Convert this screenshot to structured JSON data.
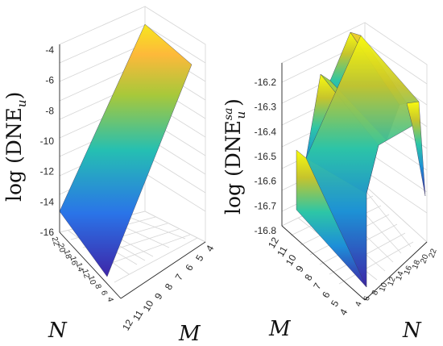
{
  "chart_data": [
    {
      "type": "surface",
      "zlabel_text": "log",
      "zlabel_main": "DNE",
      "zlabel_sub": "u",
      "xlabel": "N",
      "ylabel": "M",
      "z_ticks": [
        "-4",
        "-6",
        "-8",
        "-10",
        "-12",
        "-14",
        "-16"
      ],
      "m_ticks": [
        "4",
        "5",
        "6",
        "7",
        "8",
        "9",
        "10",
        "11",
        "12"
      ],
      "n_ticks": [
        "22",
        "20",
        "18",
        "16",
        "14",
        "12",
        "10",
        "8",
        "6",
        "4"
      ],
      "z_range": [
        -16,
        -4
      ],
      "surface_z_at_min_N": -15,
      "surface_z_at_max_N": -5,
      "colormap": [
        "#3e26a8",
        "#1d8fd8",
        "#2dc6a6",
        "#b8c52e",
        "#ffc838",
        "#f9fb0e"
      ]
    },
    {
      "type": "surface",
      "zlabel_text": "log",
      "zlabel_main": "DNE",
      "zlabel_sub": "u",
      "zlabel_sup": "sa",
      "xlabel": "N",
      "ylabel": "M",
      "z_ticks": [
        "-16.2",
        "-16.3",
        "-16.4",
        "-16.5",
        "-16.6",
        "-16.7",
        "-16.8"
      ],
      "m_ticks": [
        "12",
        "11",
        "10",
        "9",
        "8",
        "7",
        "6",
        "5",
        "4"
      ],
      "n_ticks": [
        "4",
        "6",
        "8",
        "10",
        "12",
        "14",
        "16",
        "18",
        "20",
        "22"
      ],
      "z_range": [
        -16.8,
        -16.15
      ],
      "ridge_peaks_by_N": [
        -16.5,
        -16.35,
        -16.25,
        -16.15
      ],
      "colormap": [
        "#3e26a8",
        "#1d8fd8",
        "#2dc6a6",
        "#b8c52e",
        "#ffc838",
        "#f9fb0e"
      ]
    }
  ]
}
